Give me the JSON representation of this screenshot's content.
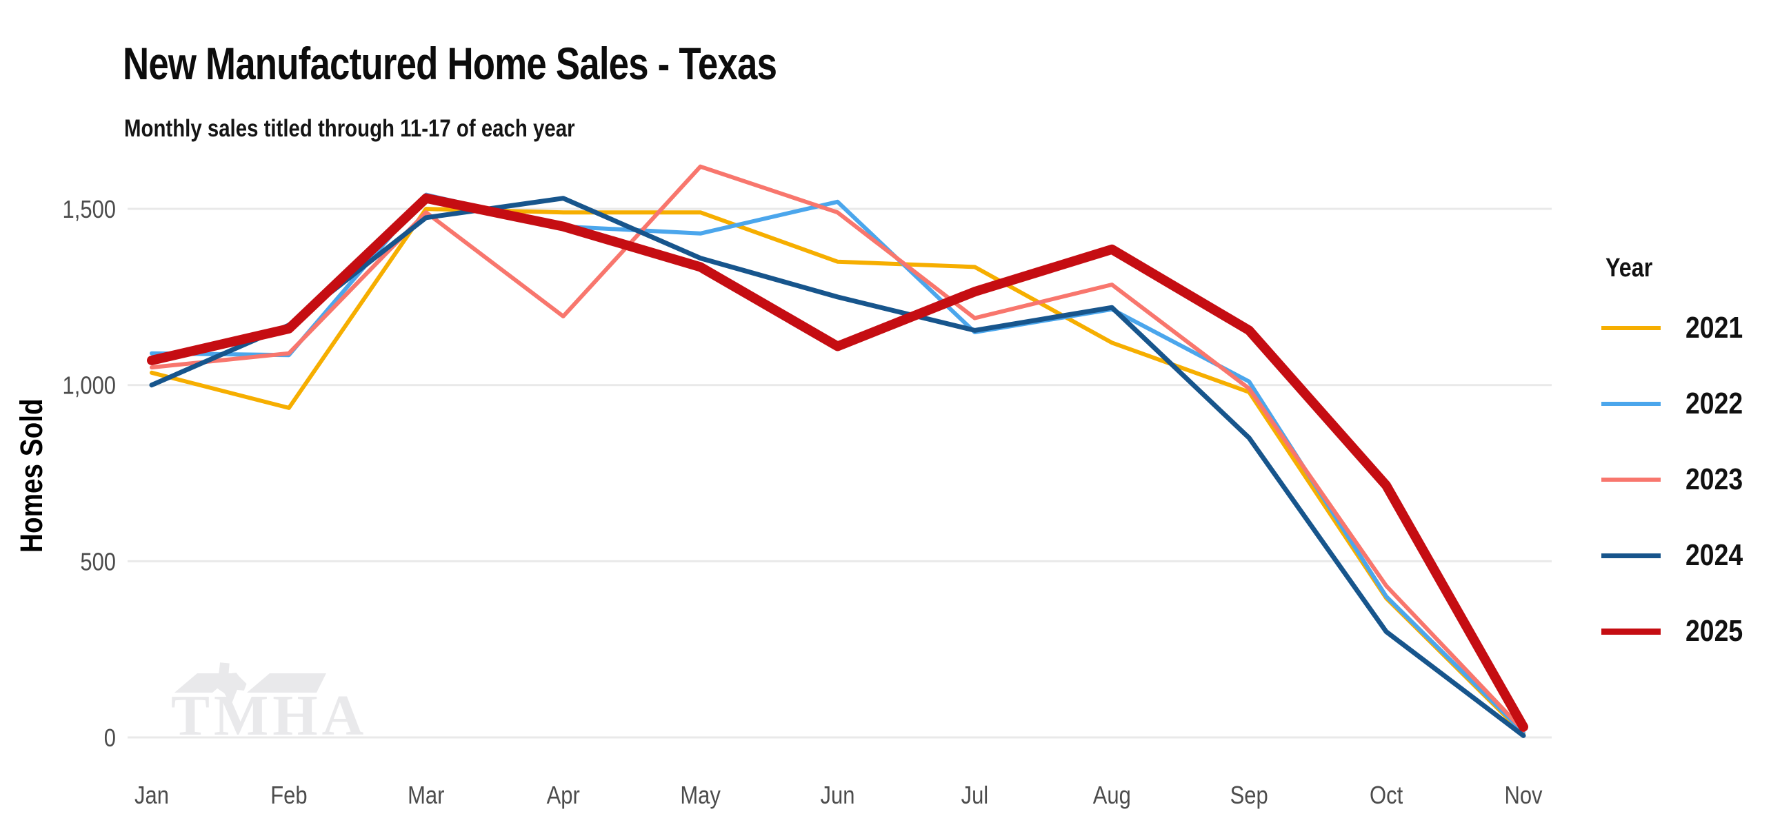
{
  "header": {
    "title": "New Manufactured Home Sales - Texas",
    "subtitle": "Monthly sales titled through 11-17 of each year"
  },
  "watermark": {
    "text": "TMHA"
  },
  "chart_data": {
    "type": "line",
    "title": "New Manufactured Home Sales - Texas",
    "subtitle": "Monthly sales titled through 11-17 of each year",
    "categories": [
      "Jan",
      "Feb",
      "Mar",
      "Apr",
      "May",
      "Jun",
      "Jul",
      "Aug",
      "Sep",
      "Oct",
      "Nov"
    ],
    "xlabel": "",
    "ylabel": "Homes Sold",
    "ylim": [
      0,
      1650
    ],
    "grid": "horizontal",
    "grid_color": "#e9e9e9",
    "axis_text_color": "#4c4c4c",
    "legend_title": "Year",
    "legend_position": "right",
    "yticks": [
      {
        "value": 0,
        "label": "0"
      },
      {
        "value": 500,
        "label": "500"
      },
      {
        "value": 1000,
        "label": "1,000"
      },
      {
        "value": 1500,
        "label": "1,500"
      }
    ],
    "series": [
      {
        "name": "2021",
        "color": "#F6AE00",
        "width": 6,
        "values": [
          1035,
          935,
          1500,
          1490,
          1490,
          1350,
          1335,
          1120,
          980,
          395,
          10
        ]
      },
      {
        "name": "2022",
        "color": "#4BA6EC",
        "width": 6,
        "values": [
          1090,
          1085,
          1540,
          1450,
          1430,
          1520,
          1150,
          1215,
          1010,
          400,
          15
        ]
      },
      {
        "name": "2023",
        "color": "#F8766D",
        "width": 6,
        "values": [
          1050,
          1090,
          1490,
          1195,
          1620,
          1490,
          1190,
          1285,
          990,
          430,
          20
        ]
      },
      {
        "name": "2024",
        "color": "#17558C",
        "width": 7,
        "values": [
          1000,
          1170,
          1475,
          1530,
          1360,
          1250,
          1155,
          1220,
          850,
          300,
          5
        ]
      },
      {
        "name": "2025",
        "color": "#C50D12",
        "width": 14,
        "values": [
          1070,
          1160,
          1530,
          1450,
          1335,
          1110,
          1265,
          1385,
          1155,
          715,
          30
        ]
      }
    ]
  }
}
